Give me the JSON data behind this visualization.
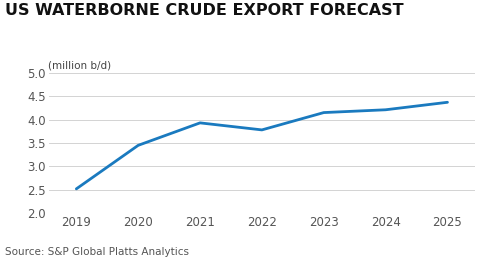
{
  "title": "US WATERBORNE CRUDE EXPORT FORECAST",
  "subtitle": "(million b/d)",
  "source": "Source: S&P Global Platts Analytics",
  "x": [
    2019,
    2020,
    2021,
    2022,
    2023,
    2024,
    2025
  ],
  "y": [
    2.52,
    3.45,
    3.93,
    3.78,
    4.15,
    4.21,
    4.37
  ],
  "line_color": "#1a7abf",
  "line_width": 2.0,
  "ylim": [
    2.0,
    5.0
  ],
  "yticks": [
    2.0,
    2.5,
    3.0,
    3.5,
    4.0,
    4.5,
    5.0
  ],
  "xlim": [
    2018.55,
    2025.45
  ],
  "xticks": [
    2019,
    2020,
    2021,
    2022,
    2023,
    2024,
    2025
  ],
  "title_fontsize": 11.5,
  "subtitle_fontsize": 7.5,
  "source_fontsize": 7.5,
  "tick_fontsize": 8.5,
  "background_color": "#ffffff",
  "grid_color": "#cccccc",
  "title_color": "#111111",
  "tick_color": "#555555",
  "source_color": "#555555"
}
